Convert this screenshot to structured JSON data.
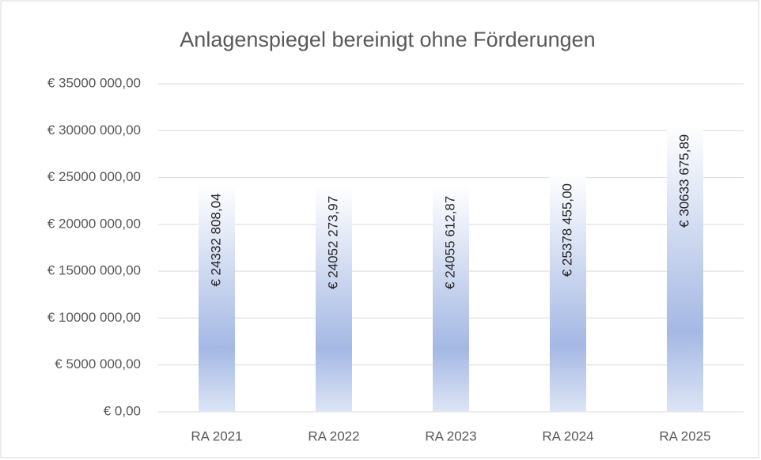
{
  "chart_data": {
    "type": "bar",
    "title": "Anlagenspiegel bereinigt ohne Förderungen",
    "categories": [
      "RA 2021",
      "RA 2022",
      "RA 2023",
      "RA 2024",
      "RA 2025"
    ],
    "values": [
      24332808.04,
      24052273.97,
      24055612.87,
      25378455.0,
      30633675.89
    ],
    "value_labels": [
      "€ 24332 808,04",
      "€ 24052 273,97",
      "€ 24055 612,87",
      "€ 25378 455,00",
      "€ 30633 675,89"
    ],
    "color": "#a4b8e4",
    "ylim": [
      0,
      35000000
    ],
    "yticks": [
      {
        "value": 0,
        "label": "€  0,00"
      },
      {
        "value": 5000000,
        "label": "€ 5000 000,00"
      },
      {
        "value": 10000000,
        "label": "€ 10000 000,00"
      },
      {
        "value": 15000000,
        "label": "€ 15000 000,00"
      },
      {
        "value": 20000000,
        "label": "€ 20000 000,00"
      },
      {
        "value": 25000000,
        "label": "€ 25000 000,00"
      },
      {
        "value": 30000000,
        "label": "€ 30000 000,00"
      },
      {
        "value": 35000000,
        "label": "€ 35000 000,00"
      }
    ],
    "grid": true
  }
}
